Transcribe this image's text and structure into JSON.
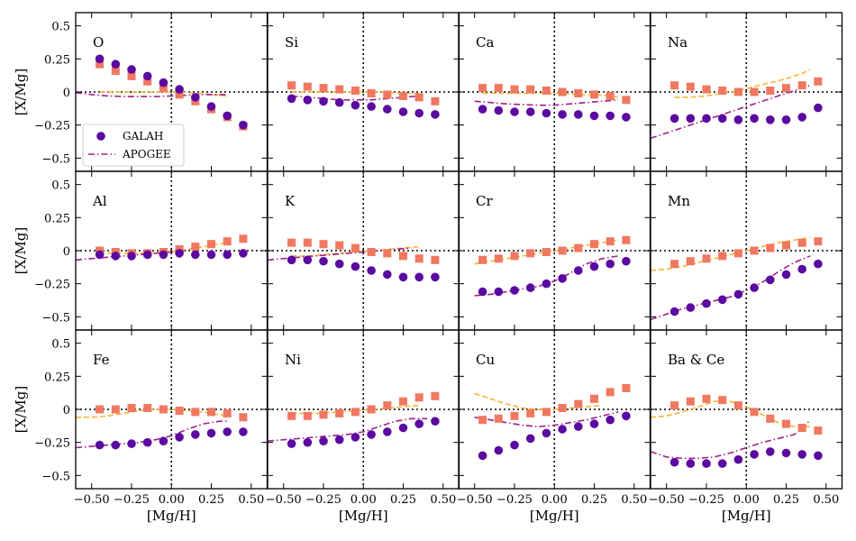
{
  "chart_data": {
    "type": "scatter",
    "layout": "3x4 grid of panels",
    "xlabel": "[Mg/H]",
    "ylabel": "[X/Mg]",
    "xlim": [
      -0.6,
      0.6
    ],
    "ylim": [
      -0.6,
      0.6
    ],
    "xticks": [
      -0.5,
      -0.25,
      0,
      0.25,
      0.5
    ],
    "xtick_labels": [
      "−0.50",
      "−0.25",
      "0.00",
      "0.25",
      "0.50"
    ],
    "yticks": [
      0.5,
      0.25,
      0,
      -0.25,
      -0.5
    ],
    "ytick_labels": [
      "0.5",
      "0.25",
      "0",
      "−0.25",
      "−0.5"
    ],
    "x_grid": [
      -0.45,
      -0.35,
      -0.25,
      -0.15,
      -0.05,
      0.05,
      0.15,
      0.25,
      0.35,
      0.45
    ],
    "legend": {
      "location": "lower-left of first panel",
      "entries": [
        "GALAH",
        "APOGEE"
      ]
    },
    "colors": {
      "galah": "#5a0aa0",
      "squares": "#f07860",
      "apogee": "#a0208a",
      "yellow": "#f8b435"
    },
    "panels": [
      {
        "label": "O",
        "galah": [
          0.25,
          0.21,
          0.17,
          0.12,
          0.07,
          0.02,
          -0.04,
          -0.11,
          -0.18,
          -0.25
        ],
        "squares": [
          0.21,
          0.16,
          0.12,
          0.08,
          0.03,
          -0.02,
          -0.07,
          -0.13,
          -0.19,
          -0.26
        ],
        "apogee_x": [
          -0.6,
          -0.5,
          -0.4,
          -0.3,
          -0.2,
          -0.1,
          0.0,
          0.1,
          0.2,
          0.3,
          0.35
        ],
        "apogee_y": [
          -0.005,
          -0.02,
          -0.03,
          -0.035,
          -0.035,
          -0.035,
          -0.03,
          -0.025,
          -0.02,
          -0.02,
          -0.02
        ],
        "yellow_x": [
          -0.45,
          -0.35,
          -0.25,
          -0.15,
          -0.05,
          0.05,
          0.15,
          0.25,
          0.35
        ],
        "yellow_y": [
          0.0,
          0.0,
          0.0,
          0.0,
          0.0,
          0.0,
          -0.01,
          -0.02,
          -0.03
        ]
      },
      {
        "label": "Si",
        "galah": [
          -0.05,
          -0.06,
          -0.07,
          -0.08,
          -0.1,
          -0.11,
          -0.13,
          -0.15,
          -0.16,
          -0.17
        ],
        "squares": [
          0.05,
          0.04,
          0.03,
          0.02,
          0.01,
          -0.01,
          -0.02,
          -0.03,
          -0.04,
          -0.07
        ],
        "apogee_x": [
          -0.45,
          -0.35,
          -0.25,
          -0.15,
          -0.05,
          0.05,
          0.15,
          0.25,
          0.35
        ],
        "apogee_y": [
          -0.03,
          -0.04,
          -0.05,
          -0.06,
          -0.06,
          -0.06,
          -0.05,
          -0.04,
          -0.03
        ],
        "yellow_x": [
          -0.45,
          -0.35,
          -0.25,
          -0.15,
          -0.05,
          0.05,
          0.15,
          0.25,
          0.35
        ],
        "yellow_y": [
          0.0,
          0.0,
          0.0,
          0.0,
          0.0,
          0.0,
          0.0,
          -0.01,
          -0.01
        ]
      },
      {
        "label": "Ca",
        "galah": [
          -0.13,
          -0.14,
          -0.15,
          -0.15,
          -0.16,
          -0.17,
          -0.17,
          -0.18,
          -0.18,
          -0.19
        ],
        "squares": [
          0.03,
          0.03,
          0.02,
          0.02,
          0.01,
          0.0,
          -0.01,
          -0.02,
          -0.03,
          -0.06
        ],
        "apogee_x": [
          -0.5,
          -0.4,
          -0.3,
          -0.2,
          -0.1,
          0.0,
          0.1,
          0.2,
          0.3,
          0.4
        ],
        "apogee_y": [
          -0.07,
          -0.08,
          -0.09,
          -0.095,
          -0.1,
          -0.1,
          -0.09,
          -0.08,
          -0.07,
          -0.06
        ],
        "yellow_x": [
          -0.45,
          -0.35,
          -0.25,
          -0.15,
          -0.05,
          0.05,
          0.15,
          0.25,
          0.35,
          0.4
        ],
        "yellow_y": [
          -0.01,
          -0.01,
          -0.01,
          -0.01,
          -0.01,
          -0.01,
          -0.02,
          -0.02,
          -0.03,
          -0.04
        ]
      },
      {
        "label": "Na",
        "galah": [
          -0.2,
          -0.2,
          -0.2,
          -0.2,
          -0.21,
          -0.2,
          -0.21,
          -0.21,
          -0.19,
          -0.12
        ],
        "squares": [
          0.05,
          0.04,
          0.02,
          0.01,
          0.0,
          0.0,
          0.01,
          0.03,
          0.05,
          0.08
        ],
        "apogee_x": [
          -0.6,
          -0.5,
          -0.4,
          -0.3,
          -0.2,
          -0.1,
          0.0,
          0.1,
          0.2,
          0.3,
          0.4
        ],
        "apogee_y": [
          -0.35,
          -0.31,
          -0.27,
          -0.23,
          -0.19,
          -0.15,
          -0.11,
          -0.07,
          -0.03,
          0.01,
          0.05
        ],
        "yellow_x": [
          -0.45,
          -0.35,
          -0.25,
          -0.15,
          -0.05,
          0.05,
          0.15,
          0.25,
          0.35,
          0.4
        ],
        "yellow_y": [
          -0.04,
          -0.04,
          -0.03,
          -0.01,
          0.01,
          0.04,
          0.07,
          0.1,
          0.14,
          0.17
        ]
      },
      {
        "label": "Al",
        "galah": [
          -0.03,
          -0.04,
          -0.04,
          -0.03,
          -0.03,
          -0.02,
          -0.03,
          -0.03,
          -0.03,
          -0.02
        ],
        "squares": [
          0.0,
          -0.01,
          -0.02,
          -0.02,
          -0.01,
          0.01,
          0.03,
          0.05,
          0.07,
          0.09
        ],
        "apogee_x": [
          -0.6,
          -0.5,
          -0.4,
          -0.3,
          -0.2,
          -0.1,
          0.0,
          0.1
        ],
        "apogee_y": [
          -0.07,
          -0.06,
          -0.05,
          -0.04,
          -0.03,
          -0.02,
          -0.01,
          0.0
        ],
        "yellow_x": [
          -0.45,
          -0.35,
          -0.25,
          -0.15,
          -0.05,
          0.05,
          0.15,
          0.25,
          0.35
        ],
        "yellow_y": [
          -0.02,
          -0.02,
          -0.02,
          -0.02,
          -0.01,
          0.0,
          0.02,
          0.04,
          0.06
        ]
      },
      {
        "label": "K",
        "galah": [
          -0.07,
          -0.07,
          -0.08,
          -0.1,
          -0.12,
          -0.15,
          -0.18,
          -0.2,
          -0.2,
          -0.2
        ],
        "squares": [
          0.06,
          0.06,
          0.05,
          0.04,
          0.02,
          -0.01,
          -0.02,
          -0.04,
          -0.06,
          -0.07
        ],
        "apogee_x": [
          -0.6,
          -0.5,
          -0.4,
          -0.3,
          -0.2,
          -0.1,
          0.0,
          0.1,
          0.2,
          0.3
        ],
        "apogee_y": [
          -0.07,
          -0.06,
          -0.05,
          -0.04,
          -0.03,
          -0.02,
          -0.01,
          0.0,
          0.01,
          0.02
        ],
        "yellow_x": [
          -0.45,
          -0.35,
          -0.25,
          -0.15,
          -0.05,
          0.05,
          0.15,
          0.25,
          0.35
        ],
        "yellow_y": [
          -0.04,
          -0.04,
          -0.03,
          -0.02,
          -0.01,
          0.0,
          0.01,
          0.02,
          0.03
        ]
      },
      {
        "label": "Cr",
        "galah": [
          -0.31,
          -0.31,
          -0.3,
          -0.28,
          -0.25,
          -0.21,
          -0.15,
          -0.12,
          -0.1,
          -0.08
        ],
        "squares": [
          -0.07,
          -0.06,
          -0.04,
          -0.02,
          -0.01,
          0.0,
          0.02,
          0.05,
          0.07,
          0.08
        ],
        "apogee_x": [
          -0.5,
          -0.4,
          -0.3,
          -0.2,
          -0.1,
          0.0,
          0.1,
          0.15,
          0.2,
          0.3,
          0.4
        ],
        "apogee_y": [
          -0.34,
          -0.33,
          -0.31,
          -0.29,
          -0.27,
          -0.23,
          -0.17,
          -0.13,
          -0.1,
          -0.06,
          -0.04
        ],
        "yellow_x": [
          -0.5,
          -0.4,
          -0.3,
          -0.2,
          -0.1,
          0.0,
          0.1,
          0.2,
          0.3,
          0.4
        ],
        "yellow_y": [
          -0.1,
          -0.08,
          -0.06,
          -0.04,
          -0.02,
          0.0,
          0.02,
          0.04,
          0.06,
          0.08
        ]
      },
      {
        "label": "Mn",
        "galah": [
          -0.46,
          -0.43,
          -0.4,
          -0.37,
          -0.33,
          -0.28,
          -0.22,
          -0.18,
          -0.14,
          -0.1
        ],
        "squares": [
          -0.1,
          -0.08,
          -0.06,
          -0.04,
          -0.02,
          0.0,
          0.02,
          0.04,
          0.06,
          0.07
        ],
        "apogee_x": [
          -0.6,
          -0.5,
          -0.4,
          -0.3,
          -0.2,
          -0.1,
          0.0,
          0.1,
          0.2,
          0.3,
          0.4
        ],
        "apogee_y": [
          -0.52,
          -0.48,
          -0.44,
          -0.41,
          -0.38,
          -0.35,
          -0.3,
          -0.24,
          -0.16,
          -0.09,
          -0.04
        ],
        "yellow_x": [
          -0.6,
          -0.5,
          -0.4,
          -0.3,
          -0.2,
          -0.1,
          0.0,
          0.1,
          0.2,
          0.3,
          0.4
        ],
        "yellow_y": [
          -0.15,
          -0.14,
          -0.12,
          -0.09,
          -0.06,
          -0.03,
          0.0,
          0.03,
          0.06,
          0.08,
          0.1
        ]
      },
      {
        "label": "Fe",
        "galah": [
          -0.27,
          -0.27,
          -0.26,
          -0.25,
          -0.24,
          -0.21,
          -0.19,
          -0.18,
          -0.17,
          -0.17
        ],
        "squares": [
          0.0,
          0.0,
          0.01,
          0.01,
          0.0,
          -0.01,
          -0.02,
          -0.02,
          -0.03,
          -0.06
        ],
        "apogee_x": [
          -0.6,
          -0.5,
          -0.4,
          -0.3,
          -0.2,
          -0.1,
          0.0,
          0.1,
          0.2,
          0.3,
          0.35
        ],
        "apogee_y": [
          -0.29,
          -0.28,
          -0.27,
          -0.26,
          -0.25,
          -0.23,
          -0.2,
          -0.15,
          -0.11,
          -0.09,
          -0.09
        ],
        "yellow_x": [
          -0.6,
          -0.5,
          -0.4,
          -0.3,
          -0.2,
          -0.1,
          0.0,
          0.1,
          0.2,
          0.3,
          0.35
        ],
        "yellow_y": [
          -0.06,
          -0.06,
          -0.05,
          -0.03,
          -0.01,
          0.0,
          0.0,
          -0.01,
          -0.02,
          -0.04,
          -0.05
        ]
      },
      {
        "label": "Ni",
        "galah": [
          -0.26,
          -0.25,
          -0.24,
          -0.23,
          -0.21,
          -0.19,
          -0.17,
          -0.14,
          -0.11,
          -0.09
        ],
        "squares": [
          -0.05,
          -0.05,
          -0.04,
          -0.03,
          -0.02,
          0.0,
          0.03,
          0.06,
          0.09,
          0.1
        ],
        "apogee_x": [
          -0.6,
          -0.5,
          -0.4,
          -0.3,
          -0.2,
          -0.1,
          0.0,
          0.1,
          0.2,
          0.3,
          0.4
        ],
        "apogee_y": [
          -0.24,
          -0.23,
          -0.22,
          -0.21,
          -0.2,
          -0.19,
          -0.17,
          -0.13,
          -0.09,
          -0.07,
          -0.07
        ],
        "yellow_x": [
          -0.45,
          -0.35,
          -0.25,
          -0.15,
          -0.05,
          0.05,
          0.15,
          0.25,
          0.35
        ],
        "yellow_y": [
          -0.03,
          -0.03,
          -0.03,
          -0.02,
          -0.01,
          0.0,
          0.01,
          0.02,
          0.03
        ]
      },
      {
        "label": "Cu",
        "galah": [
          -0.35,
          -0.31,
          -0.27,
          -0.22,
          -0.18,
          -0.15,
          -0.13,
          -0.11,
          -0.08,
          -0.05
        ],
        "squares": [
          -0.08,
          -0.07,
          -0.05,
          -0.03,
          -0.02,
          0.01,
          0.04,
          0.08,
          0.13,
          0.16
        ],
        "apogee_x": [
          -0.5,
          -0.4,
          -0.3,
          -0.2,
          -0.1,
          0.0,
          0.1,
          0.2,
          0.3,
          0.4
        ],
        "apogee_y": [
          -0.06,
          -0.08,
          -0.1,
          -0.12,
          -0.13,
          -0.12,
          -0.1,
          -0.08,
          -0.05,
          -0.02
        ],
        "yellow_x": [
          -0.5,
          -0.4,
          -0.3,
          -0.2,
          -0.1,
          0.0,
          0.1,
          0.2,
          0.3
        ],
        "yellow_y": [
          0.12,
          0.08,
          0.04,
          0.01,
          0.0,
          0.0,
          0.01,
          0.02,
          0.03
        ]
      },
      {
        "label": "Ba & Ce",
        "galah": [
          -0.4,
          -0.41,
          -0.41,
          -0.41,
          -0.38,
          -0.34,
          -0.32,
          -0.33,
          -0.34,
          -0.35
        ],
        "squares": [
          0.03,
          0.06,
          0.08,
          0.07,
          0.03,
          -0.02,
          -0.07,
          -0.11,
          -0.14,
          -0.16
        ],
        "apogee_x": [
          -0.6,
          -0.5,
          -0.4,
          -0.3,
          -0.2,
          -0.1,
          0.0,
          0.1,
          0.2,
          0.3,
          0.35,
          0.4
        ],
        "apogee_y": [
          -0.32,
          -0.36,
          -0.37,
          -0.37,
          -0.36,
          -0.33,
          -0.29,
          -0.25,
          -0.22,
          -0.19,
          -0.15,
          -0.08
        ],
        "yellow_x": [
          -0.6,
          -0.5,
          -0.4,
          -0.3,
          -0.2,
          -0.1,
          0.0,
          0.1,
          0.2,
          0.3,
          0.4
        ],
        "yellow_y": [
          -0.06,
          -0.05,
          -0.02,
          0.02,
          0.06,
          0.06,
          0.02,
          -0.04,
          -0.1,
          -0.13,
          -0.13
        ]
      }
    ]
  }
}
